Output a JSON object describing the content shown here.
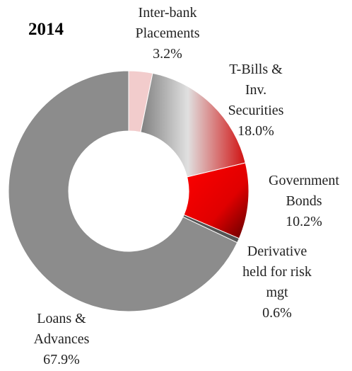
{
  "chart_data": {
    "type": "donut",
    "title": "2014",
    "categories": [
      "Inter-bank Placements",
      "T-Bills & Inv. Securities",
      "Government Bonds",
      "Derivative held for risk mgt",
      "Loans & Advances"
    ],
    "values": [
      3.2,
      18.0,
      10.2,
      0.6,
      67.9
    ],
    "value_labels": [
      "3.2%",
      "18.0%",
      "10.2%",
      "0.6%",
      "67.9%"
    ],
    "colors": [
      "#f2cccc",
      "#c98080",
      "#dd0000",
      "#555555",
      "#8c8c8c"
    ]
  }
}
